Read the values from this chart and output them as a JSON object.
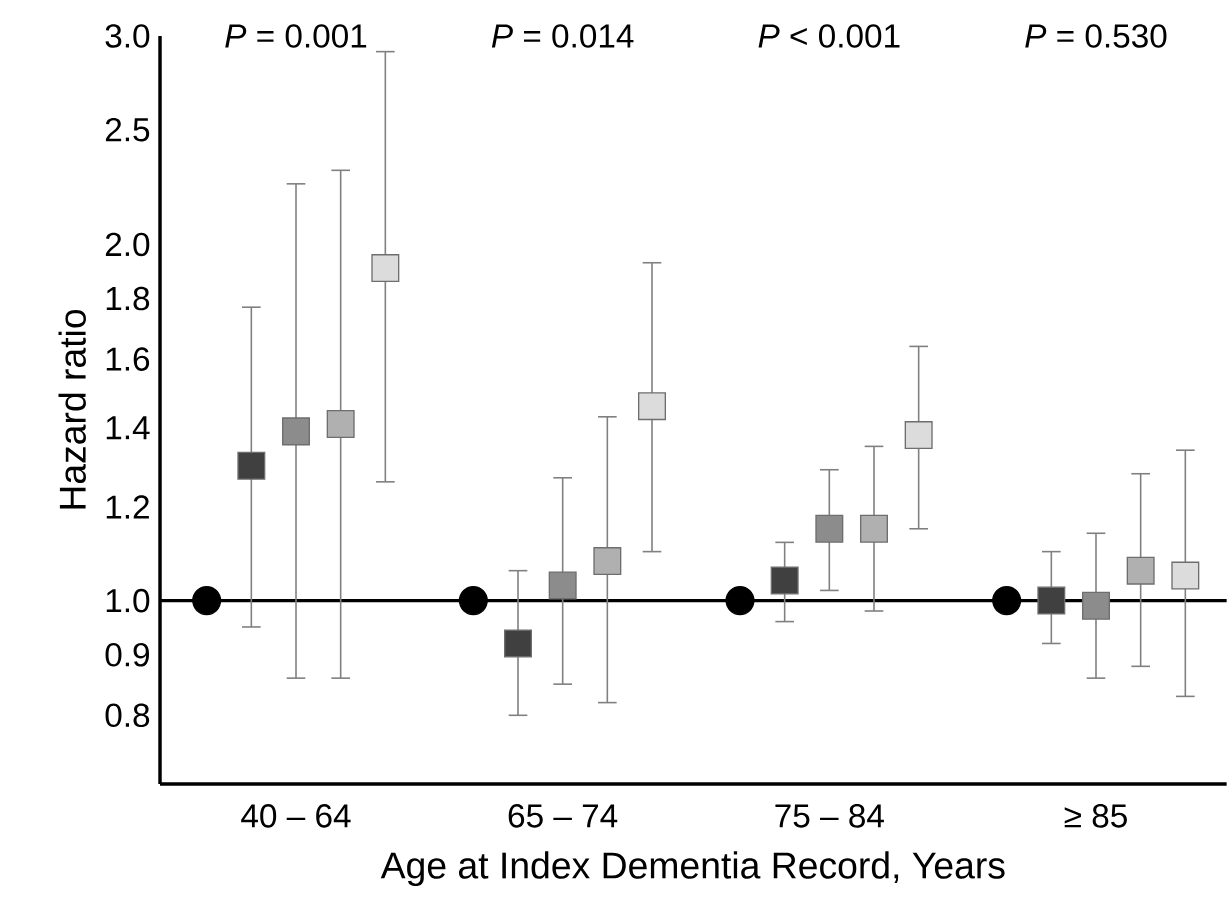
{
  "chart_data": {
    "type": "scatter",
    "categories": [
      "40 – 64",
      "65 – 74",
      "75 – 84",
      "≥ 85"
    ],
    "xlabel": "Age at Index Dementia Record, Years",
    "ylabel": "Hazard ratio",
    "log": "y",
    "ylim": [
      0.7,
      3.0
    ],
    "yticks": [
      {
        "value": 0.8,
        "label": "0.8"
      },
      {
        "value": 0.9,
        "label": "0.9"
      },
      {
        "value": 1.0,
        "label": "1.0"
      },
      {
        "value": 1.2,
        "label": "1.2"
      },
      {
        "value": 1.4,
        "label": "1.4"
      },
      {
        "value": 1.6,
        "label": "1.6"
      },
      {
        "value": 1.8,
        "label": "1.8"
      },
      {
        "value": 2.0,
        "label": "2.0"
      },
      {
        "value": 2.5,
        "label": "2.5"
      },
      {
        "value": 3.0,
        "label": "3.0"
      }
    ],
    "grid": false,
    "ref_lines": [
      {
        "axis": "y",
        "value": 1.0,
        "color": "#000000"
      }
    ],
    "annotations": [
      "*P* = 0.001",
      "*P* = 0.014",
      "*P* < 0.001",
      "*P* = 0.530"
    ],
    "series": [
      {
        "color": "#000000",
        "marker": "circle",
        "values": [
          1.0,
          1.0,
          1.0,
          1.0
        ]
      },
      {
        "color": "#404040",
        "marker": "square",
        "values": [
          1.3,
          0.92,
          1.04,
          1.0
        ],
        "errors": [
          [
            0.95,
            1.77
          ],
          [
            0.8,
            1.06
          ],
          [
            0.96,
            1.12
          ],
          [
            0.92,
            1.1
          ]
        ]
      },
      {
        "color": "#8c8c8c",
        "marker": "square",
        "values": [
          1.39,
          1.03,
          1.15,
          0.99
        ],
        "errors": [
          [
            0.86,
            2.25
          ],
          [
            0.85,
            1.27
          ],
          [
            1.02,
            1.29
          ],
          [
            0.86,
            1.14
          ]
        ]
      },
      {
        "color": "#b0b0b0",
        "marker": "square",
        "values": [
          1.41,
          1.08,
          1.15,
          1.06
        ],
        "errors": [
          [
            0.86,
            2.31
          ],
          [
            0.82,
            1.43
          ],
          [
            0.98,
            1.35
          ],
          [
            0.88,
            1.28
          ]
        ]
      },
      {
        "color": "#dcdcdc",
        "marker": "square",
        "values": [
          1.91,
          1.46,
          1.38,
          1.05
        ],
        "errors": [
          [
            1.26,
            2.91
          ],
          [
            1.1,
            1.93
          ],
          [
            1.15,
            1.64
          ],
          [
            0.83,
            1.34
          ]
        ]
      }
    ]
  }
}
